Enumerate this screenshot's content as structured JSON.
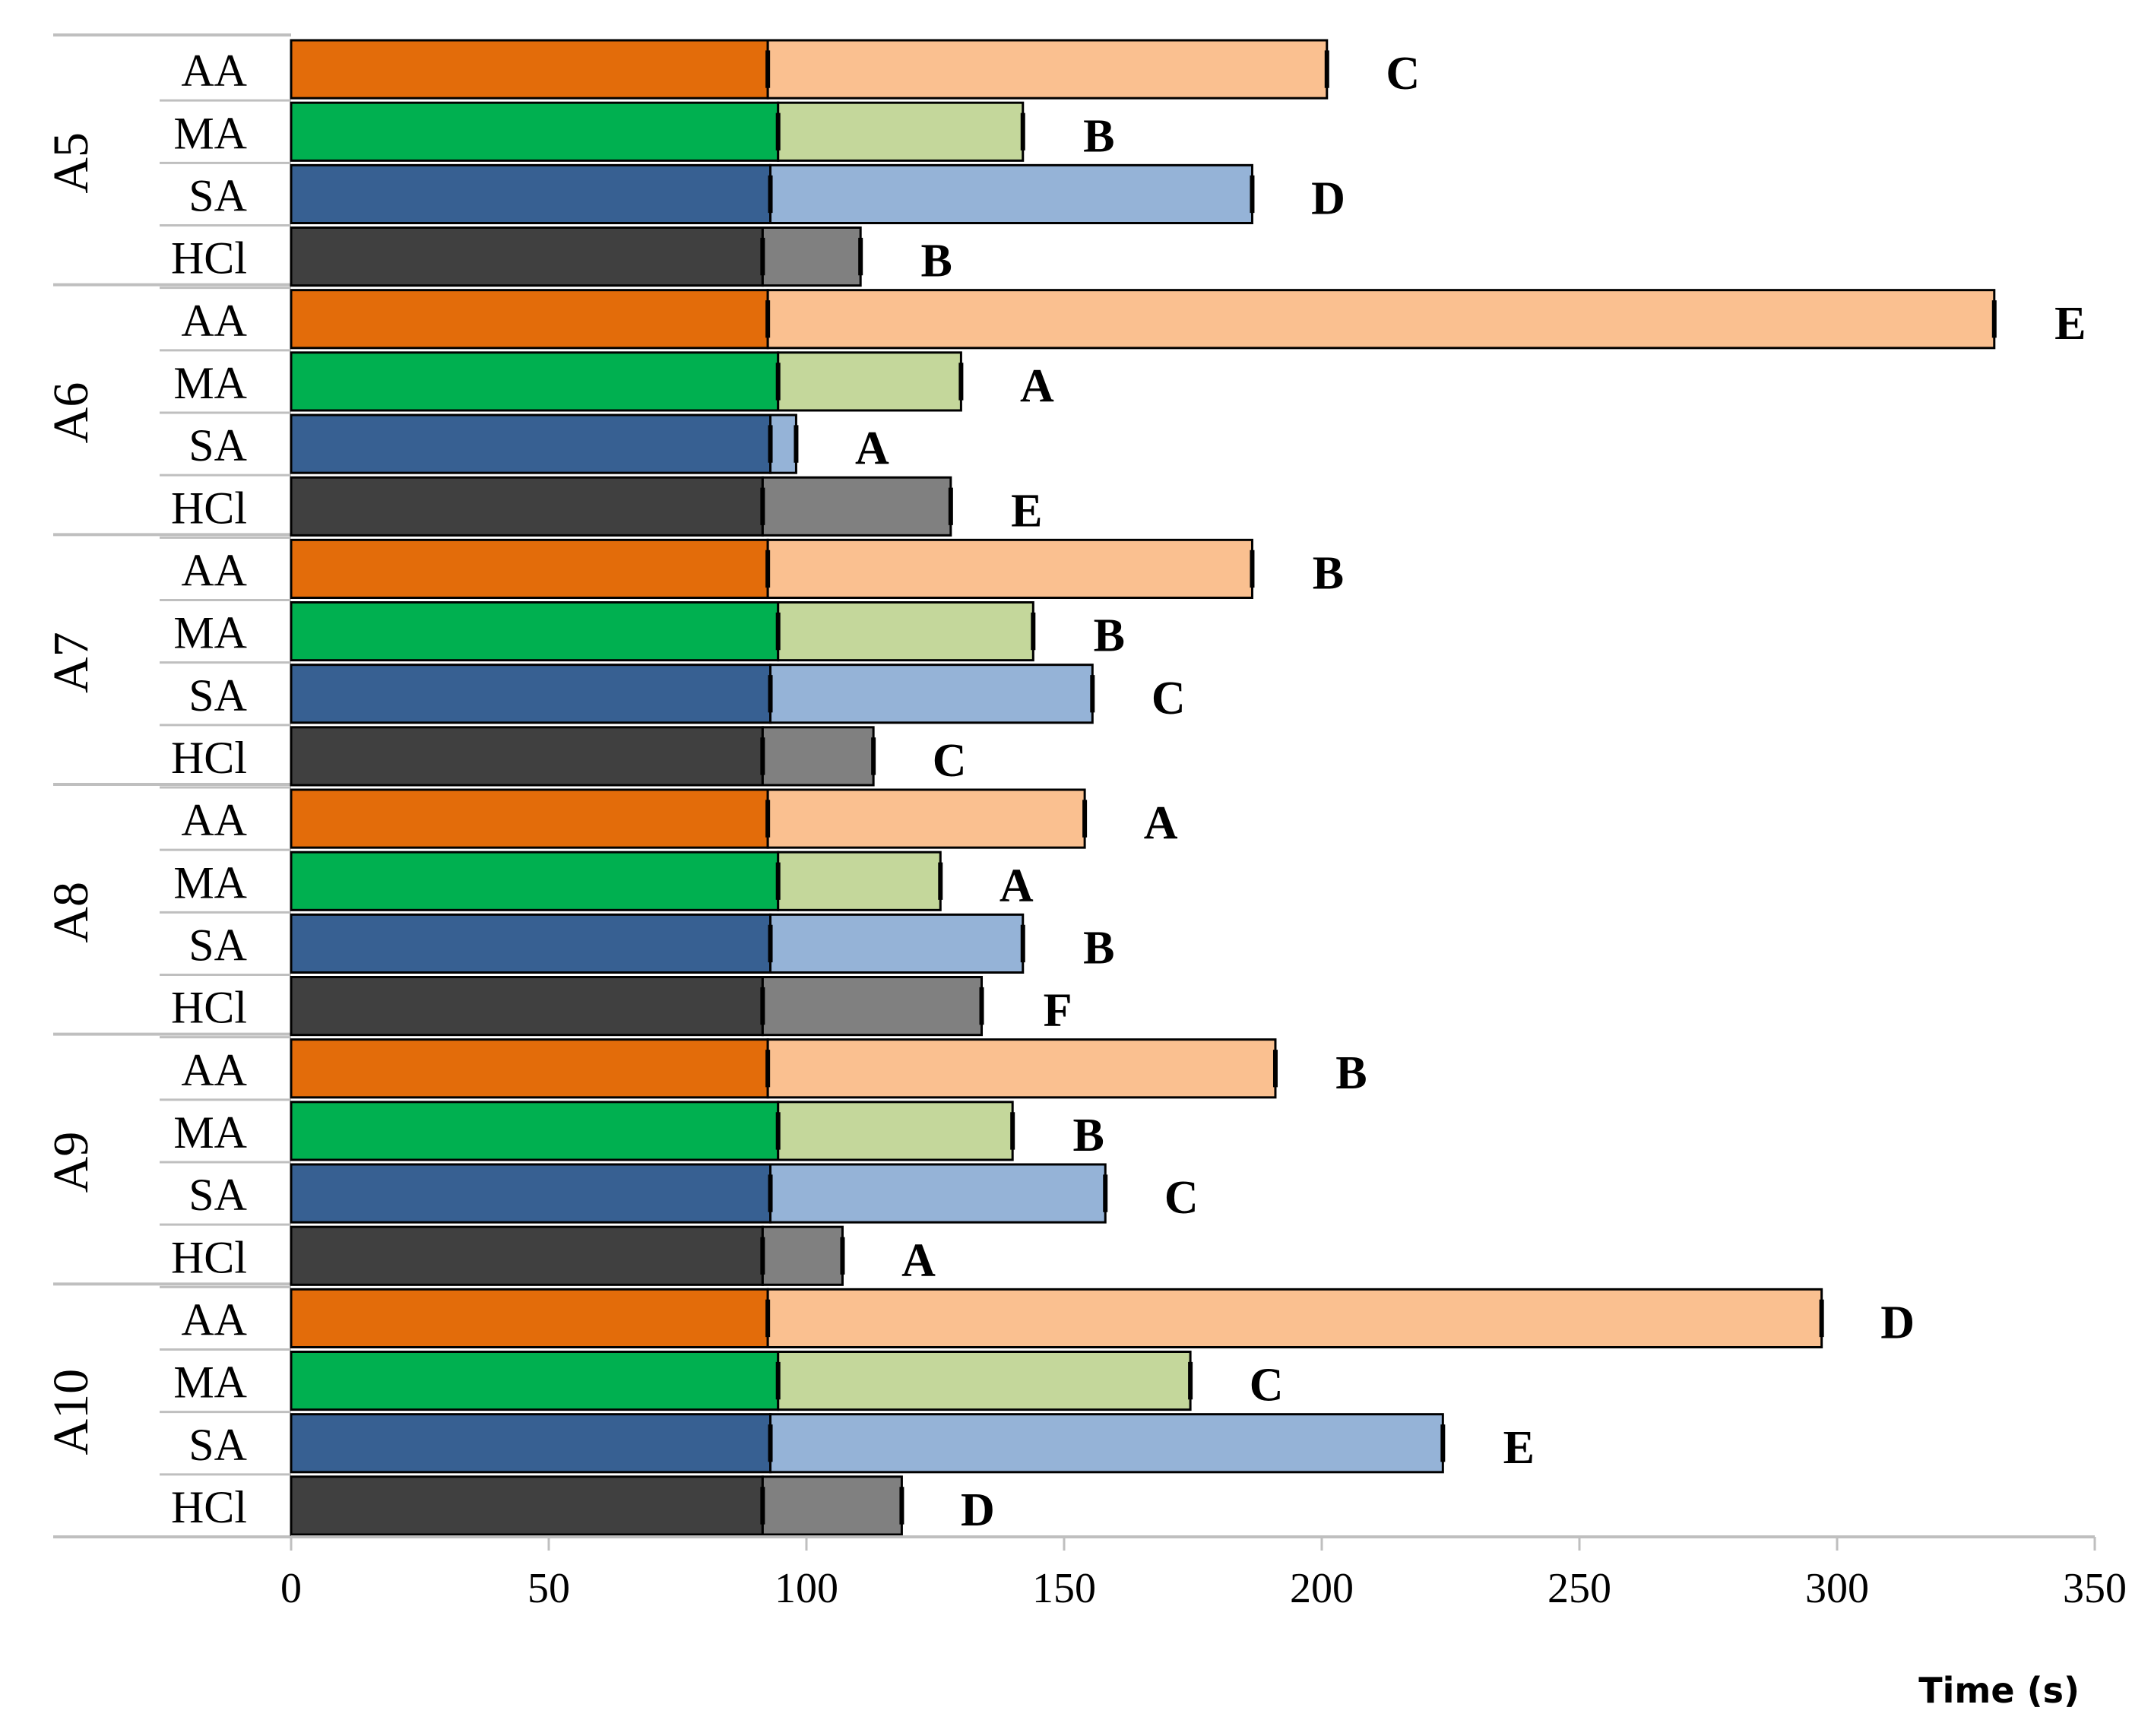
{
  "chart_data": {
    "type": "bar",
    "orientation": "horizontal",
    "stacked": true,
    "xlabel": "Time (s)",
    "xlim": [
      0,
      350
    ],
    "xticks": [
      0,
      50,
      100,
      150,
      200,
      250,
      300,
      350
    ],
    "groups": [
      "A5",
      "A6",
      "A7",
      "A8",
      "A9",
      "A10"
    ],
    "categories": [
      "AA",
      "MA",
      "SA",
      "HCl"
    ],
    "colors": {
      "AA": {
        "base": "#e36c0a",
        "extra": "#fac090"
      },
      "MA": {
        "base": "#00b050",
        "extra": "#c4d79b"
      },
      "SA": {
        "base": "#376092",
        "extra": "#95b3d7"
      },
      "HCl": {
        "base": "#404040",
        "extra": "#808080"
      }
    },
    "bars": [
      {
        "group": "A5",
        "category": "AA",
        "base": 92.5,
        "total": 201,
        "letter": "C"
      },
      {
        "group": "A5",
        "category": "MA",
        "base": 94.5,
        "total": 142,
        "letter": "B"
      },
      {
        "group": "A5",
        "category": "SA",
        "base": 93,
        "total": 186.5,
        "letter": "D"
      },
      {
        "group": "A5",
        "category": "HCl",
        "base": 91.5,
        "total": 110.5,
        "letter": "B"
      },
      {
        "group": "A6",
        "category": "AA",
        "base": 92.5,
        "total": 330.5,
        "letter": "E"
      },
      {
        "group": "A6",
        "category": "MA",
        "base": 94.5,
        "total": 130,
        "letter": "A"
      },
      {
        "group": "A6",
        "category": "SA",
        "base": 93,
        "total": 98,
        "letter": "A"
      },
      {
        "group": "A6",
        "category": "HCl",
        "base": 91.5,
        "total": 128,
        "letter": "E"
      },
      {
        "group": "A7",
        "category": "AA",
        "base": 92.5,
        "total": 186.5,
        "letter": "B"
      },
      {
        "group": "A7",
        "category": "MA",
        "base": 94.5,
        "total": 144,
        "letter": "B"
      },
      {
        "group": "A7",
        "category": "SA",
        "base": 93,
        "total": 155.5,
        "letter": "C"
      },
      {
        "group": "A7",
        "category": "HCl",
        "base": 91.5,
        "total": 113,
        "letter": "C"
      },
      {
        "group": "A8",
        "category": "AA",
        "base": 92.5,
        "total": 154,
        "letter": "A"
      },
      {
        "group": "A8",
        "category": "MA",
        "base": 94.5,
        "total": 126,
        "letter": "A"
      },
      {
        "group": "A8",
        "category": "SA",
        "base": 93,
        "total": 142,
        "letter": "B"
      },
      {
        "group": "A8",
        "category": "HCl",
        "base": 91.5,
        "total": 134,
        "letter": "F"
      },
      {
        "group": "A9",
        "category": "AA",
        "base": 92.5,
        "total": 191,
        "letter": "B"
      },
      {
        "group": "A9",
        "category": "MA",
        "base": 94.5,
        "total": 140,
        "letter": "B"
      },
      {
        "group": "A9",
        "category": "SA",
        "base": 93,
        "total": 158,
        "letter": "C"
      },
      {
        "group": "A9",
        "category": "HCl",
        "base": 91.5,
        "total": 107,
        "letter": "A"
      },
      {
        "group": "A10",
        "category": "AA",
        "base": 92.5,
        "total": 297,
        "letter": "D"
      },
      {
        "group": "A10",
        "category": "MA",
        "base": 94.5,
        "total": 174.5,
        "letter": "C"
      },
      {
        "group": "A10",
        "category": "SA",
        "base": 93,
        "total": 223.5,
        "letter": "E"
      },
      {
        "group": "A10",
        "category": "HCl",
        "base": 91.5,
        "total": 118.5,
        "letter": "D"
      }
    ],
    "title": "",
    "ylabel": "",
    "grid": false,
    "legend": "none",
    "error_bars": true
  }
}
